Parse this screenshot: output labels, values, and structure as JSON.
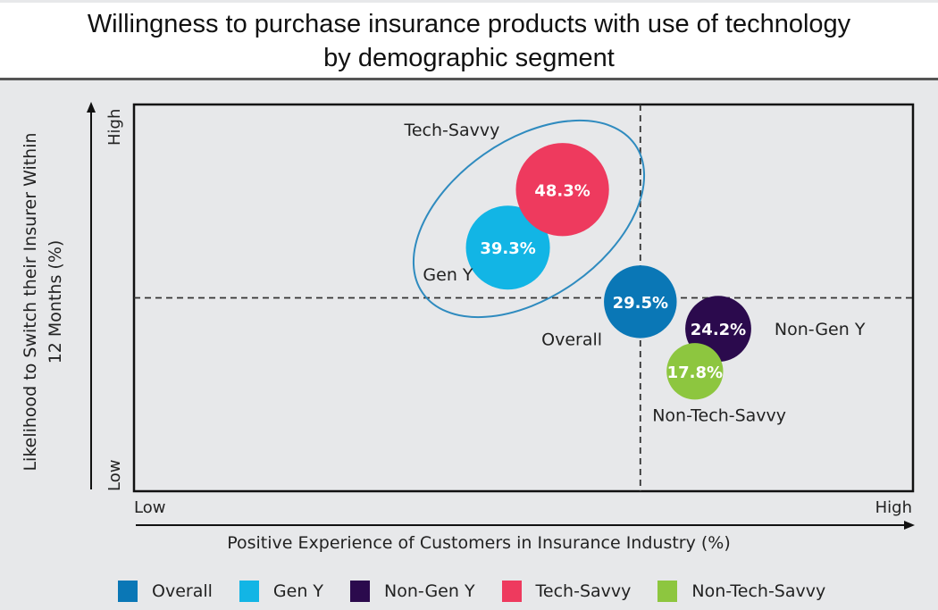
{
  "chart_data": {
    "type": "scatter",
    "subtype": "bubble-quadrant",
    "title": "Willingness to purchase insurance products with use of technology by demographic segment",
    "title_lines": [
      "Willingness to purchase insurance products with use of technology",
      "by demographic segment"
    ],
    "xlabel": "Positive Experience of Customers in Insurance Industry (%)",
    "ylabel_lines": [
      "Likelihood to Switch their Insurer Within",
      "12 Months (%)"
    ],
    "x_ticks": {
      "low": "Low",
      "high": "High"
    },
    "y_ticks": {
      "low": "Low",
      "high": "High"
    },
    "xlim": [
      0,
      100
    ],
    "ylim": [
      0,
      100
    ],
    "quadrant_divider": {
      "x": 65,
      "y": 50
    },
    "grid": false,
    "legend_position": "bottom",
    "series": [
      {
        "name": "Overall",
        "value_label": "29.5%",
        "value": 29.5,
        "x": 65,
        "y": 49,
        "color": "#0a77b6",
        "label_pos": "left"
      },
      {
        "name": "Gen Y",
        "value_label": "39.3%",
        "value": 39.3,
        "x": 48,
        "y": 63,
        "color": "#12b5e5",
        "label_pos": "left"
      },
      {
        "name": "Non-Gen Y",
        "value_label": "24.2%",
        "value": 24.2,
        "x": 75,
        "y": 42,
        "color": "#2b0a4d",
        "label_pos": "right"
      },
      {
        "name": "Tech-Savvy",
        "value_label": "48.3%",
        "value": 48.3,
        "x": 55,
        "y": 78,
        "color": "#ee3a5e",
        "label_pos": "top"
      },
      {
        "name": "Non-Tech-Savvy",
        "value_label": "17.8%",
        "value": 17.8,
        "x": 72,
        "y": 31,
        "color": "#8dc63f",
        "label_pos": "bottom"
      }
    ],
    "annotation": {
      "type": "ellipse",
      "encloses": [
        "Gen Y",
        "Tech-Savvy"
      ],
      "color": "#2f8bbf"
    }
  }
}
